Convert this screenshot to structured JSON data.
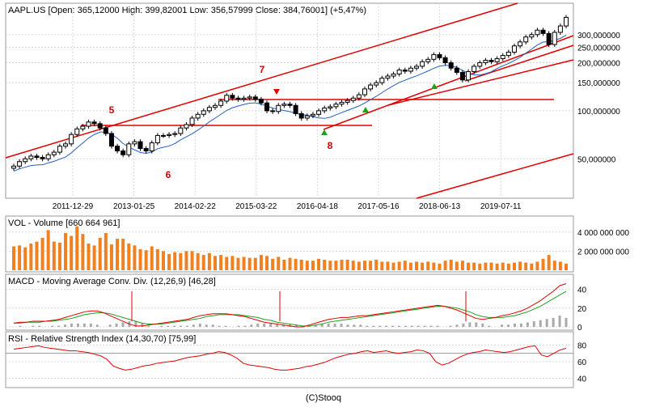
{
  "main": {
    "title": "AAPL.US [Open: 365,12000  High: 399,82001  Low: 356,57999  Close: 384,76001] (+5,47%)",
    "y_ticks": [
      "300,000000",
      "250,000000",
      "200,000000",
      "150,000000",
      "100,000000",
      "50,000000"
    ],
    "x_ticks": [
      "2011-12-29",
      "2013-01-25",
      "2014-02-22",
      "2015-03-22",
      "2016-04-18",
      "2017-05-16",
      "2018-06-13",
      "2019-07-11"
    ],
    "annotations": [
      "5",
      "6",
      "7",
      "8"
    ]
  },
  "vol": {
    "title": "VOL - Volume [660 664 961]",
    "y_ticks": [
      "4 000 000 000",
      "2 000 000 000"
    ]
  },
  "macd": {
    "title": "MACD - Moving Average Conv. Div. (12,26,9) [46,28]",
    "y_ticks": [
      "40",
      "20",
      "0"
    ]
  },
  "rsi": {
    "title": "RSI - Relative Strength Index (14,30,70) [75,99]",
    "y_ticks": [
      "80",
      "60",
      "40"
    ]
  },
  "footer": "(C)Stooq",
  "colors": {
    "up": "#ffffff",
    "down": "#000000",
    "trend": "#e00000",
    "ma": "#1f5fbf",
    "volume": "#f08020",
    "macd_signal": "#20a020",
    "arrow_up": "#20a020",
    "arrow_down": "#e00000"
  },
  "chart_data": [
    {
      "type": "candlestick",
      "title": "AAPL.US",
      "scale": "log",
      "ylim": [
        30,
        440
      ],
      "x_start": "2011-01",
      "x_end": "2020-07",
      "close": [
        45,
        48,
        50,
        52,
        51,
        50,
        53,
        55,
        60,
        62,
        71,
        77,
        80,
        85,
        83,
        78,
        72,
        60,
        56,
        53,
        62,
        64,
        58,
        56,
        63,
        70,
        70,
        71,
        72,
        78,
        82,
        90,
        95,
        100,
        105,
        108,
        115,
        125,
        120,
        118,
        120,
        122,
        118,
        112,
        100,
        99,
        108,
        110,
        108,
        96,
        90,
        93,
        95,
        100,
        104,
        106,
        110,
        113,
        116,
        120,
        126,
        137,
        145,
        150,
        160,
        165,
        170,
        180,
        177,
        185,
        190,
        203,
        210,
        225,
        215,
        200,
        185,
        174,
        156,
        176,
        190,
        200,
        207,
        203,
        212,
        222,
        233,
        255,
        270,
        290,
        300,
        320,
        305,
        260,
        310,
        340,
        385
      ],
      "volume": [
        2.5,
        2.6,
        2.4,
        2.8,
        3.0,
        3.4,
        4.2,
        3.0,
        2.9,
        3.9,
        3.6,
        4.6,
        3.8,
        2.8,
        2.6,
        3.4,
        3.9,
        2.7,
        3.3,
        3.3,
        2.8,
        2.6,
        2.2,
        2.1,
        2.5,
        2.2,
        2.0,
        1.7,
        1.9,
        1.8,
        2.0,
        2.0,
        1.8,
        1.6,
        1.8,
        1.5,
        1.6,
        1.4,
        1.5,
        1.3,
        1.4,
        1.3,
        1.3,
        1.6,
        1.5,
        1.2,
        1.4,
        1.1,
        1.3,
        1.2,
        1.1,
        1.0,
        1.0,
        1.2,
        1.1,
        1.0,
        1.0,
        1.1,
        1.1,
        1.0,
        0.9,
        1.0,
        1.0,
        1.1,
        0.9,
        0.9,
        0.8,
        0.9,
        1.0,
        0.8,
        0.9,
        0.8,
        0.9,
        0.8,
        0.7,
        1.0,
        1.1,
        0.9,
        1.0,
        0.8,
        0.8,
        0.7,
        0.8,
        0.8,
        0.7,
        0.8,
        0.7,
        0.8,
        0.9,
        0.8,
        0.7,
        0.9,
        1.2,
        1.6,
        1.0,
        0.9,
        0.7
      ],
      "macd": [
        4,
        5,
        5,
        6,
        6,
        6,
        7,
        8,
        10,
        12,
        14,
        16,
        17,
        17,
        15,
        12,
        9,
        6,
        3,
        1,
        1,
        2,
        3,
        4,
        5,
        6,
        7,
        8,
        10,
        12,
        13,
        14,
        14,
        14,
        13,
        12,
        11,
        9,
        7,
        5,
        4,
        3,
        2,
        1,
        0,
        0,
        2,
        4,
        6,
        8,
        9,
        10,
        10,
        11,
        12,
        12,
        13,
        14,
        15,
        16,
        17,
        18,
        19,
        20,
        21,
        22,
        23,
        22,
        20,
        18,
        15,
        12,
        9,
        8,
        9,
        10,
        12,
        13,
        15,
        17,
        20,
        24,
        28,
        33,
        38,
        44,
        46
      ],
      "signal": [
        4,
        4,
        5,
        5,
        5,
        6,
        6,
        7,
        8,
        9,
        11,
        13,
        14,
        15,
        15,
        14,
        12,
        10,
        8,
        6,
        4,
        3,
        3,
        3,
        4,
        5,
        6,
        7,
        8,
        9,
        11,
        12,
        13,
        13,
        13,
        13,
        12,
        11,
        10,
        8,
        7,
        5,
        4,
        3,
        2,
        1,
        1,
        2,
        3,
        5,
        6,
        7,
        8,
        9,
        10,
        11,
        12,
        13,
        14,
        15,
        16,
        17,
        18,
        19,
        20,
        21,
        22,
        22,
        21,
        20,
        18,
        16,
        13,
        11,
        10,
        10,
        10,
        11,
        12,
        14,
        16,
        19,
        22,
        26,
        30,
        34,
        38
      ],
      "rsi": [
        75,
        76,
        77,
        78,
        79,
        77,
        76,
        75,
        74,
        73,
        73,
        72,
        71,
        69,
        67,
        63,
        55,
        52,
        50,
        51,
        53,
        55,
        56,
        58,
        59,
        60,
        61,
        63,
        65,
        66,
        67,
        69,
        70,
        72,
        71,
        68,
        64,
        58,
        56,
        55,
        54,
        53,
        51,
        50,
        50,
        51,
        52,
        54,
        55,
        57,
        59,
        62,
        65,
        67,
        69,
        70,
        72,
        73,
        71,
        72,
        73,
        71,
        70,
        71,
        72,
        74,
        73,
        70,
        60,
        56,
        58,
        62,
        66,
        69,
        71,
        72,
        74,
        73,
        72,
        71,
        72,
        74,
        76,
        78,
        79,
        68,
        66,
        70,
        74,
        76
      ]
    }
  ]
}
